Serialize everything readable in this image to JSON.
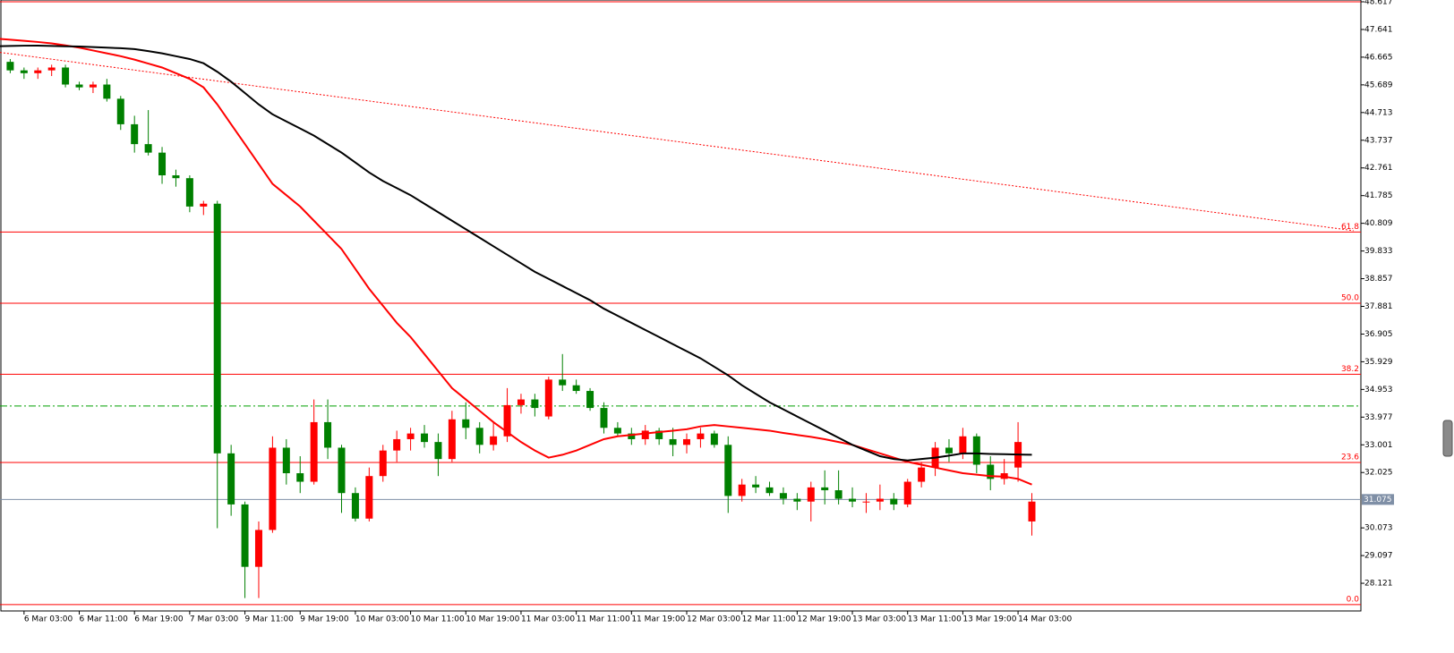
{
  "chart_data": {
    "type": "candlestick",
    "categories": [
      null,
      null,
      "6 Mar 03:00",
      null,
      null,
      null,
      "6 Mar 11:00",
      null,
      null,
      null,
      "6 Mar 19:00",
      null,
      null,
      null,
      "7 Mar 03:00",
      null,
      null,
      null,
      "9 Mar 11:00",
      null,
      null,
      null,
      "9 Mar 19:00",
      null,
      null,
      null,
      "10 Mar 03:00",
      null,
      null,
      null,
      "10 Mar 11:00",
      null,
      null,
      null,
      "10 Mar 19:00",
      null,
      null,
      null,
      "11 Mar 03:00",
      null,
      null,
      null,
      "11 Mar 11:00",
      null,
      null,
      null,
      "11 Mar 19:00",
      null,
      null,
      null,
      "12 Mar 03:00",
      null,
      null,
      null,
      "12 Mar 11:00",
      null,
      null,
      null,
      "12 Mar 19:00",
      null,
      null,
      null,
      "13 Mar 03:00",
      null,
      null,
      null,
      "13 Mar 11:00",
      null,
      null,
      null,
      "13 Mar 19:00",
      null,
      null,
      null,
      "14 Mar 03:00",
      null
    ],
    "open": [
      46.8,
      46.5,
      46.2,
      46.1,
      46.2,
      46.3,
      45.7,
      45.6,
      45.7,
      45.2,
      44.3,
      43.6,
      43.3,
      42.5,
      42.4,
      41.4,
      41.5,
      32.7,
      30.9,
      28.7,
      30.0,
      32.9,
      32.0,
      31.7,
      33.8,
      32.9,
      31.3,
      30.4,
      31.9,
      32.8,
      33.2,
      33.4,
      33.1,
      32.5,
      33.9,
      33.6,
      33.0,
      33.3,
      34.4,
      34.6,
      34.0,
      35.3,
      35.1,
      34.9,
      34.3,
      33.6,
      33.4,
      33.2,
      33.5,
      33.2,
      33.0,
      33.2,
      33.4,
      33.0,
      31.2,
      31.6,
      31.5,
      31.3,
      31.1,
      31.0,
      31.5,
      31.4,
      31.1,
      31.0,
      31.0,
      31.1,
      30.9,
      31.7,
      32.2,
      32.9,
      32.7,
      33.3,
      32.3,
      31.8,
      32.2,
      30.3
    ],
    "high": [
      46.9,
      46.6,
      46.3,
      46.3,
      46.4,
      46.4,
      45.8,
      45.8,
      45.9,
      45.3,
      44.6,
      44.8,
      43.5,
      42.7,
      42.5,
      41.6,
      41.6,
      33.0,
      31.0,
      30.3,
      33.3,
      33.2,
      32.6,
      34.6,
      34.6,
      33.0,
      31.5,
      32.2,
      33.0,
      33.5,
      33.6,
      33.7,
      33.4,
      34.2,
      34.5,
      33.8,
      33.8,
      35.0,
      34.8,
      34.8,
      35.4,
      36.2,
      35.3,
      35.0,
      34.5,
      33.8,
      33.6,
      33.7,
      33.6,
      33.6,
      33.4,
      33.6,
      33.5,
      33.3,
      31.8,
      31.9,
      31.7,
      31.5,
      31.3,
      31.7,
      32.1,
      32.1,
      31.5,
      31.3,
      31.6,
      31.3,
      31.8,
      32.4,
      33.1,
      33.2,
      33.6,
      33.4,
      32.6,
      32.5,
      33.8,
      31.3
    ],
    "low": [
      46.4,
      46.1,
      45.9,
      45.9,
      46.0,
      45.6,
      45.5,
      45.4,
      45.1,
      44.1,
      43.3,
      43.2,
      42.2,
      42.1,
      41.2,
      41.1,
      30.06,
      30.5,
      27.6,
      27.6,
      29.9,
      31.6,
      31.3,
      31.6,
      32.5,
      30.6,
      30.3,
      30.3,
      31.7,
      32.4,
      32.8,
      32.9,
      31.9,
      32.4,
      33.2,
      32.7,
      32.8,
      33.1,
      34.1,
      34.0,
      33.9,
      34.9,
      34.8,
      34.2,
      33.4,
      33.3,
      33.0,
      33.0,
      33.0,
      32.6,
      32.7,
      32.9,
      32.9,
      30.6,
      31.0,
      31.3,
      31.2,
      30.9,
      30.7,
      30.3,
      30.9,
      30.9,
      30.8,
      30.6,
      30.7,
      30.7,
      30.8,
      31.5,
      31.9,
      32.4,
      32.5,
      32.0,
      31.4,
      31.6,
      31.7,
      29.8
    ],
    "close": [
      46.5,
      46.2,
      46.1,
      46.2,
      46.3,
      45.7,
      45.6,
      45.7,
      45.2,
      44.3,
      43.6,
      43.3,
      42.5,
      42.4,
      41.4,
      41.5,
      32.7,
      30.9,
      28.7,
      30.0,
      32.9,
      32.0,
      31.7,
      33.8,
      32.9,
      31.3,
      30.4,
      31.9,
      32.8,
      33.2,
      33.4,
      33.1,
      32.5,
      33.9,
      33.6,
      33.0,
      33.3,
      34.4,
      34.6,
      34.3,
      35.3,
      35.1,
      34.9,
      34.3,
      33.6,
      33.4,
      33.2,
      33.5,
      33.2,
      33.0,
      33.2,
      33.4,
      33.0,
      31.2,
      31.6,
      31.5,
      31.3,
      31.1,
      31.0,
      31.5,
      31.4,
      31.1,
      31.0,
      31.0,
      31.1,
      30.9,
      31.7,
      32.2,
      32.9,
      32.7,
      33.3,
      32.3,
      31.8,
      32.0,
      33.1,
      31.0
    ],
    "up_color": "#ff0000",
    "down_color": "#008000",
    "series": [
      {
        "color": "#ff0000",
        "values": [
          47.32,
          47.28,
          47.24,
          47.2,
          47.15,
          47.08,
          47.0,
          46.9,
          46.8,
          46.7,
          46.58,
          46.44,
          46.3,
          46.1,
          45.9,
          45.6,
          45.0,
          44.3,
          43.6,
          42.9,
          42.2,
          41.8,
          41.4,
          40.9,
          40.4,
          39.9,
          39.2,
          38.5,
          37.9,
          37.3,
          36.8,
          36.2,
          35.6,
          35.0,
          34.6,
          34.2,
          33.8,
          33.45,
          33.1,
          32.8,
          32.55,
          32.65,
          32.8,
          33.0,
          33.2,
          33.3,
          33.35,
          33.4,
          33.45,
          33.5,
          33.55,
          33.65,
          33.7,
          33.65,
          33.6,
          33.55,
          33.5,
          33.42,
          33.35,
          33.28,
          33.2,
          33.1,
          33.0,
          32.85,
          32.7,
          32.55,
          32.4,
          32.3,
          32.2,
          32.1,
          32.0,
          31.95,
          31.9,
          31.88,
          31.8,
          31.6
        ]
      },
      {
        "color": "#000000",
        "values": [
          47.05,
          47.06,
          47.07,
          47.07,
          47.06,
          47.05,
          47.04,
          47.02,
          47.0,
          46.98,
          46.95,
          46.88,
          46.8,
          46.7,
          46.6,
          46.45,
          46.15,
          45.8,
          45.4,
          45.0,
          44.65,
          44.4,
          44.15,
          43.9,
          43.6,
          43.3,
          42.95,
          42.6,
          42.3,
          42.05,
          41.8,
          41.5,
          41.2,
          40.9,
          40.6,
          40.3,
          40.0,
          39.7,
          39.4,
          39.1,
          38.85,
          38.6,
          38.35,
          38.1,
          37.8,
          37.55,
          37.3,
          37.05,
          36.8,
          36.55,
          36.3,
          36.05,
          35.75,
          35.45,
          35.1,
          34.8,
          34.5,
          34.25,
          34.0,
          33.75,
          33.5,
          33.25,
          33.0,
          32.8,
          32.6,
          32.5,
          32.45,
          32.5,
          32.55,
          32.62,
          32.7,
          32.7,
          32.68,
          32.67,
          32.66,
          32.65
        ]
      }
    ],
    "ylim": [
      27.145,
      48.68
    ],
    "yticks": [
      48.617,
      47.641,
      46.665,
      45.689,
      44.713,
      43.737,
      42.761,
      41.785,
      40.809,
      39.833,
      38.857,
      37.881,
      36.905,
      35.929,
      34.953,
      33.977,
      33.001,
      32.025,
      30.073,
      29.097,
      28.121
    ],
    "fib_levels": [
      {
        "label": "0.0",
        "value": 27.37
      },
      {
        "label": "23.6",
        "value": 32.38
      },
      {
        "label": "38.2",
        "value": 35.49
      },
      {
        "label": "50.0",
        "value": 37.99
      },
      {
        "label": "61.8",
        "value": 40.5
      },
      {
        "value": 48.617
      }
    ],
    "fib_color": "#ff0000",
    "trendline": {
      "x": [
        0,
        98.3
      ],
      "y": [
        46.85,
        40.55
      ],
      "color": "#ff0000"
    },
    "level_line": {
      "value": 34.37,
      "color": "#00a000"
    },
    "current_price": {
      "value": 31.075,
      "color": "#7f8fa6"
    }
  }
}
